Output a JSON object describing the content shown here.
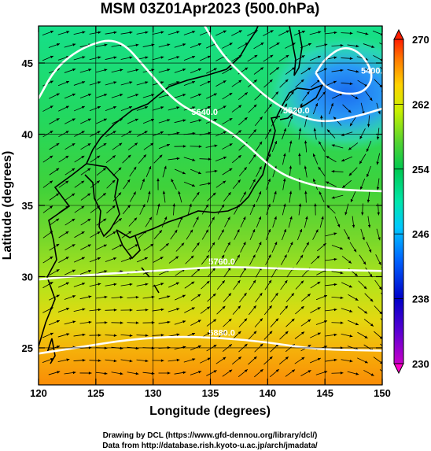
{
  "chart_data": {
    "type": "heatmap",
    "title": "MSM 03Z01Apr2023 (500.0hPa)",
    "xlabel": "Longitude (degrees)",
    "ylabel": "Latitude  (degrees)",
    "xlim": [
      120,
      150
    ],
    "ylim": [
      22.4,
      47.6
    ],
    "xticks": [
      120,
      125,
      130,
      135,
      140,
      145,
      150
    ],
    "yticks": [
      25,
      30,
      35,
      40,
      45
    ],
    "colorbar": {
      "min": 230,
      "max": 270,
      "ticks": [
        230,
        238,
        246,
        254,
        262,
        270
      ],
      "extend": "both"
    },
    "contours": [
      {
        "label": "5400.0",
        "points": [
          [
            144.2,
            44.3
          ],
          [
            145.0,
            45.3
          ],
          [
            146.6,
            46.2
          ],
          [
            148.2,
            45.7
          ],
          [
            149.3,
            44.1
          ],
          [
            148.4,
            42.9
          ],
          [
            146.6,
            42.8
          ],
          [
            145.0,
            43.3
          ],
          [
            144.2,
            44.3
          ]
        ]
      },
      {
        "label": "5520.0",
        "points": [
          [
            134.5,
            47.6
          ],
          [
            136.0,
            45.6
          ],
          [
            138.0,
            44.0
          ],
          [
            140.0,
            42.5
          ],
          [
            142.5,
            41.3
          ],
          [
            145.0,
            40.8
          ],
          [
            148.0,
            41.3
          ],
          [
            150.0,
            41.8
          ]
        ]
      },
      {
        "label": "5640.0",
        "points": [
          [
            120.0,
            42.5
          ],
          [
            121.5,
            44.7
          ],
          [
            124.0,
            46.2
          ],
          [
            127.0,
            46.8
          ],
          [
            129.5,
            44.5
          ],
          [
            132.0,
            42.2
          ],
          [
            134.5,
            41.2
          ],
          [
            137.5,
            39.8
          ],
          [
            140.5,
            37.5
          ],
          [
            143.0,
            36.6
          ],
          [
            146.0,
            36.1
          ],
          [
            150.0,
            36.0
          ]
        ]
      },
      {
        "label": "5760.0",
        "points": [
          [
            120.0,
            29.8
          ],
          [
            124.0,
            30.1
          ],
          [
            128.0,
            30.3
          ],
          [
            132.0,
            30.5
          ],
          [
            136.0,
            30.7
          ],
          [
            140.0,
            30.6
          ],
          [
            144.0,
            30.5
          ],
          [
            150.0,
            30.4
          ]
        ]
      },
      {
        "label": "5880.0",
        "points": [
          [
            120.0,
            24.6
          ],
          [
            124.0,
            25.1
          ],
          [
            128.0,
            25.6
          ],
          [
            132.0,
            25.8
          ],
          [
            136.0,
            25.7
          ],
          [
            140.0,
            25.4
          ],
          [
            144.0,
            24.9
          ],
          [
            150.0,
            24.8
          ]
        ]
      }
    ],
    "field_description_points": [
      {
        "lon": 147.5,
        "lat": 43.5,
        "value": 240
      },
      {
        "lon": 142.0,
        "lat": 47.0,
        "value": 247
      },
      {
        "lon": 130.0,
        "lat": 42.0,
        "value": 252
      },
      {
        "lon": 125.0,
        "lat": 40.0,
        "value": 250
      },
      {
        "lon": 135.0,
        "lat": 35.0,
        "value": 254
      },
      {
        "lon": 130.0,
        "lat": 30.0,
        "value": 258
      },
      {
        "lon": 130.0,
        "lat": 26.0,
        "value": 262
      },
      {
        "lon": 138.0,
        "lat": 23.0,
        "value": 265
      }
    ]
  },
  "credits": {
    "line1": "Drawing by DCL (https://www.gfd-dennou.org/library/dcl/)",
    "line2": "Data from http://database.rish.kyoto-u.ac.jp/arch/jmadata/"
  }
}
